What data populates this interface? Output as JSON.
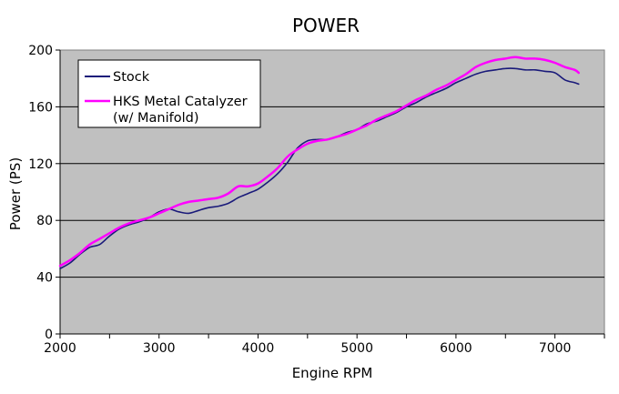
{
  "chart_data": {
    "type": "line",
    "title": "POWER",
    "xlabel": "Engine RPM",
    "ylabel": "Power (PS)",
    "xlim": [
      2000,
      7500
    ],
    "ylim": [
      0,
      200
    ],
    "x_ticks": [
      2000,
      3000,
      4000,
      5000,
      6000,
      7000
    ],
    "y_ticks": [
      0,
      40,
      80,
      120,
      160,
      200
    ],
    "grid": "horizontal",
    "legend_position": "top-left",
    "series": [
      {
        "name": "Stock",
        "color": "#1a1a7a",
        "points": [
          [
            2000,
            46
          ],
          [
            2100,
            50
          ],
          [
            2200,
            56
          ],
          [
            2300,
            61
          ],
          [
            2400,
            63
          ],
          [
            2500,
            69
          ],
          [
            2600,
            74
          ],
          [
            2700,
            77
          ],
          [
            2800,
            79
          ],
          [
            2900,
            82
          ],
          [
            3000,
            86
          ],
          [
            3100,
            88
          ],
          [
            3200,
            86
          ],
          [
            3300,
            85
          ],
          [
            3400,
            87
          ],
          [
            3500,
            89
          ],
          [
            3600,
            90
          ],
          [
            3700,
            92
          ],
          [
            3800,
            96
          ],
          [
            3900,
            99
          ],
          [
            4000,
            102
          ],
          [
            4100,
            107
          ],
          [
            4200,
            113
          ],
          [
            4300,
            121
          ],
          [
            4400,
            131
          ],
          [
            4500,
            136
          ],
          [
            4600,
            137
          ],
          [
            4700,
            137
          ],
          [
            4800,
            139
          ],
          [
            4900,
            142
          ],
          [
            5000,
            144
          ],
          [
            5100,
            148
          ],
          [
            5200,
            150
          ],
          [
            5300,
            153
          ],
          [
            5400,
            156
          ],
          [
            5500,
            160
          ],
          [
            5600,
            163
          ],
          [
            5700,
            167
          ],
          [
            5800,
            170
          ],
          [
            5900,
            173
          ],
          [
            6000,
            177
          ],
          [
            6100,
            180
          ],
          [
            6200,
            183
          ],
          [
            6300,
            185
          ],
          [
            6400,
            186
          ],
          [
            6500,
            187
          ],
          [
            6600,
            187
          ],
          [
            6700,
            186
          ],
          [
            6800,
            186
          ],
          [
            6900,
            185
          ],
          [
            7000,
            184
          ],
          [
            7100,
            179
          ],
          [
            7200,
            177
          ],
          [
            7240,
            176
          ]
        ]
      },
      {
        "name": "HKS Metal Catalyzer (w/ Manifold)",
        "legend_lines": [
          "HKS Metal Catalyzer",
          "(w/ Manifold)"
        ],
        "color": "#ff00ff",
        "points": [
          [
            2000,
            48
          ],
          [
            2100,
            52
          ],
          [
            2200,
            57
          ],
          [
            2300,
            63
          ],
          [
            2400,
            67
          ],
          [
            2500,
            71
          ],
          [
            2600,
            75
          ],
          [
            2700,
            78
          ],
          [
            2800,
            80
          ],
          [
            2900,
            82
          ],
          [
            3000,
            85
          ],
          [
            3100,
            88
          ],
          [
            3200,
            91
          ],
          [
            3300,
            93
          ],
          [
            3400,
            94
          ],
          [
            3500,
            95
          ],
          [
            3600,
            96
          ],
          [
            3700,
            99
          ],
          [
            3800,
            104
          ],
          [
            3900,
            104
          ],
          [
            4000,
            106
          ],
          [
            4100,
            111
          ],
          [
            4200,
            117
          ],
          [
            4300,
            125
          ],
          [
            4400,
            130
          ],
          [
            4500,
            134
          ],
          [
            4600,
            136
          ],
          [
            4700,
            137
          ],
          [
            4800,
            139
          ],
          [
            4900,
            141
          ],
          [
            5000,
            144
          ],
          [
            5100,
            147
          ],
          [
            5200,
            151
          ],
          [
            5300,
            154
          ],
          [
            5400,
            157
          ],
          [
            5500,
            161
          ],
          [
            5600,
            165
          ],
          [
            5700,
            168
          ],
          [
            5800,
            172
          ],
          [
            5900,
            175
          ],
          [
            6000,
            179
          ],
          [
            6100,
            183
          ],
          [
            6200,
            188
          ],
          [
            6300,
            191
          ],
          [
            6400,
            193
          ],
          [
            6500,
            194
          ],
          [
            6600,
            195
          ],
          [
            6700,
            194
          ],
          [
            6800,
            194
          ],
          [
            6900,
            193
          ],
          [
            7000,
            191
          ],
          [
            7100,
            188
          ],
          [
            7200,
            186
          ],
          [
            7240,
            184
          ]
        ]
      }
    ]
  }
}
